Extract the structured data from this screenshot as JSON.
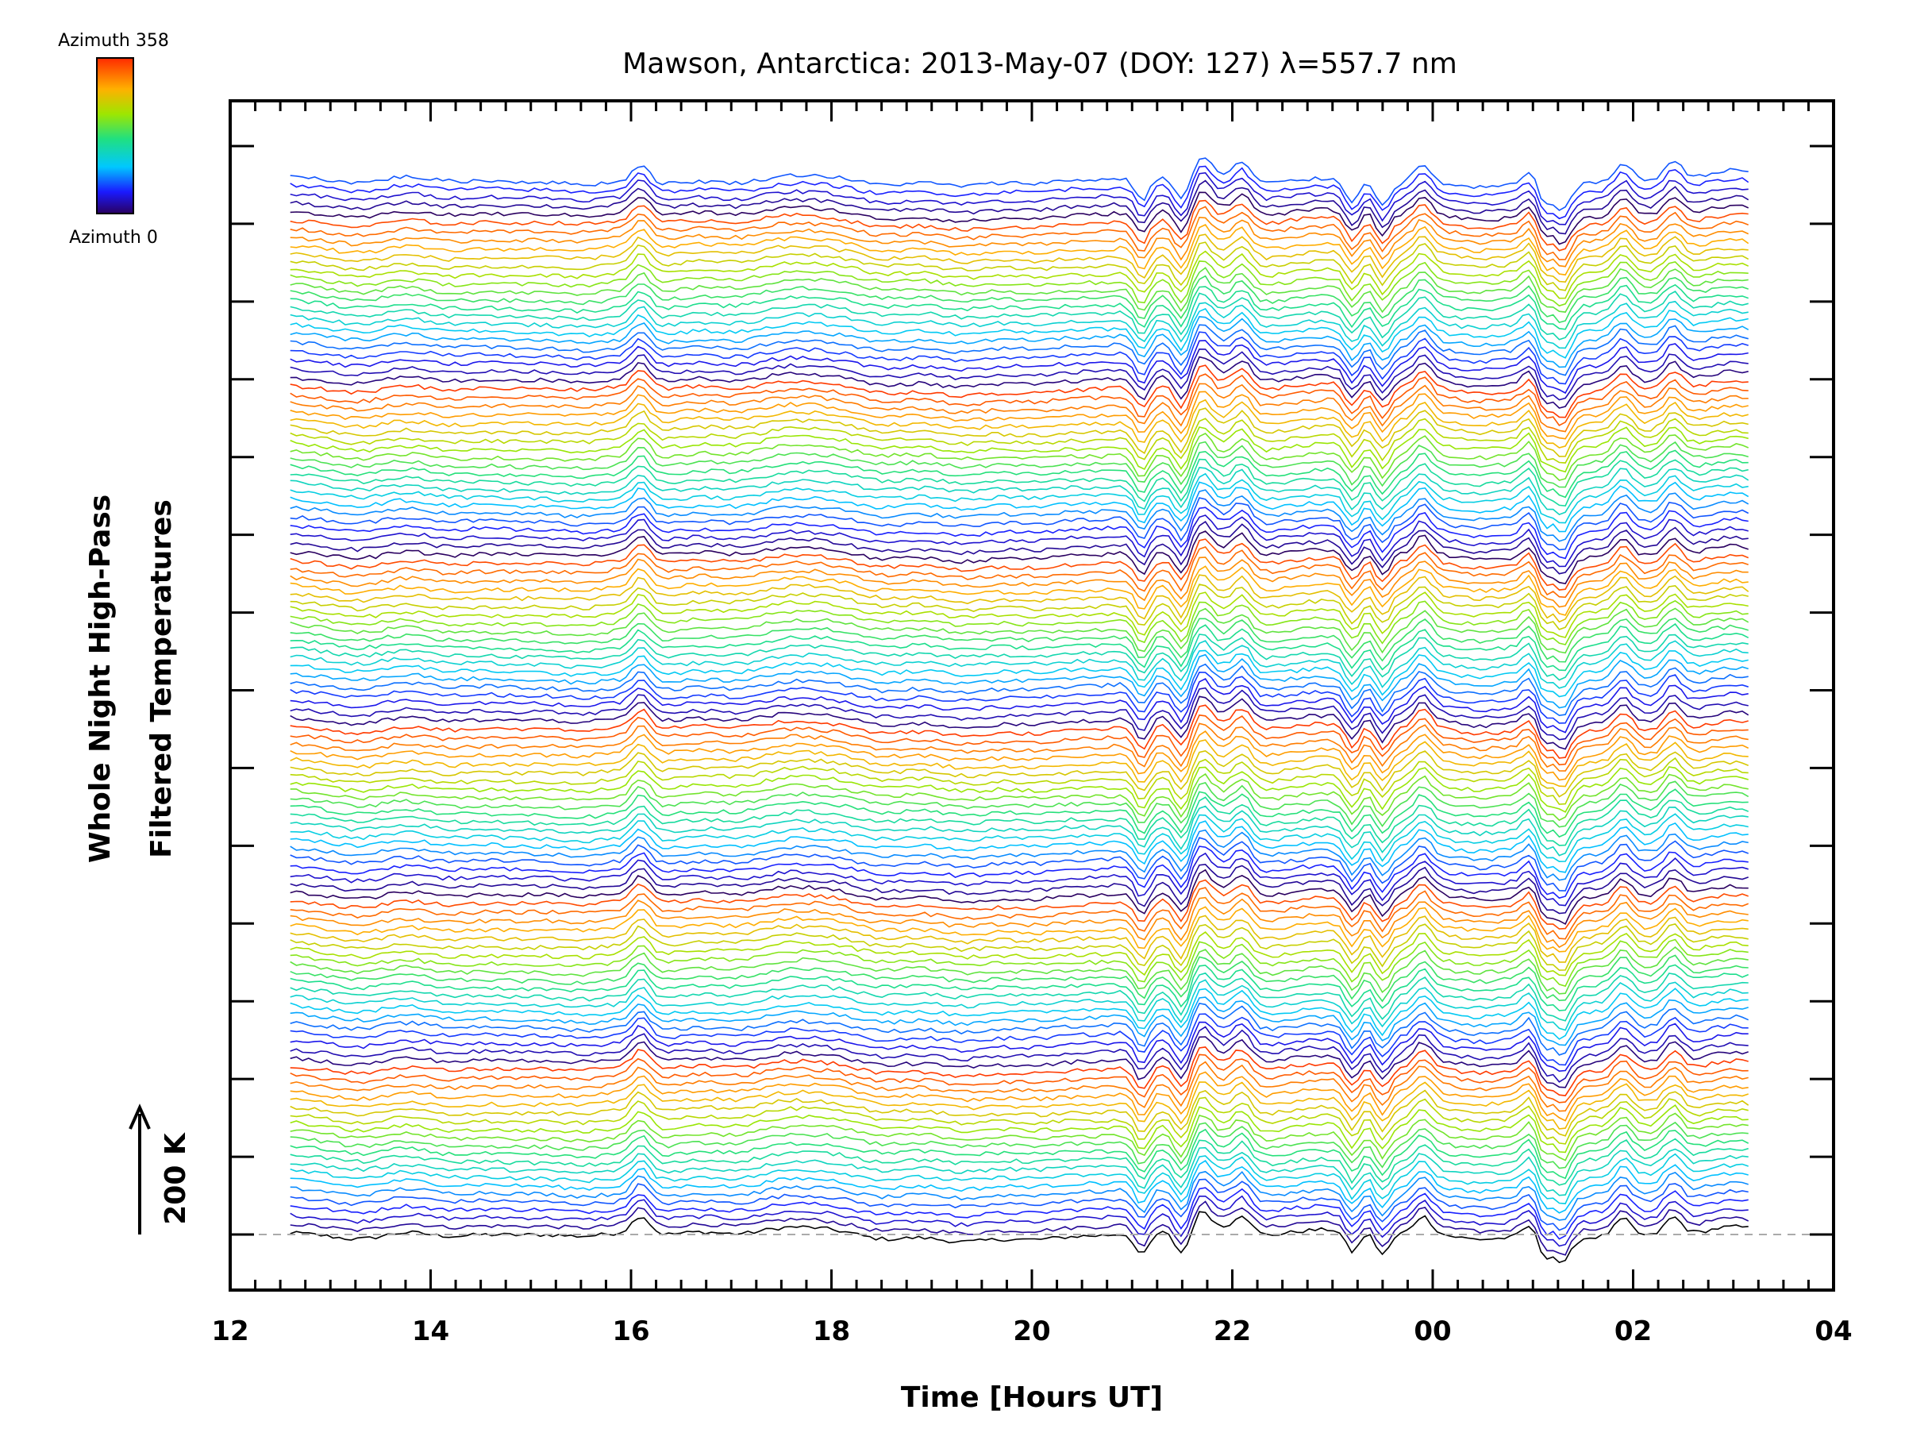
{
  "chart_data": {
    "type": "line",
    "title": "Mawson, Antarctica: 2013-May-07 (DOY: 127) λ=557.7 nm",
    "xlabel": "Time [Hours UT]",
    "ylabel_line1": "Whole Night High-Pass",
    "ylabel_line2": "Filtered Temperatures",
    "scale_label": "200 K",
    "x_ticks": [
      "12",
      "14",
      "16",
      "18",
      "20",
      "22",
      "00",
      "02",
      "04"
    ],
    "x_tick_values": [
      12,
      14,
      16,
      18,
      20,
      22,
      24,
      26,
      28
    ],
    "xlim": [
      12,
      28
    ],
    "data_start_hour": 12.6,
    "data_end_hour": 27.15,
    "n_traces": 128,
    "azimuth_min": 0,
    "azimuth_max": 358,
    "legend": {
      "top_label": "Azimuth 358",
      "bottom_label": "Azimuth 0",
      "colormap": "rainbow"
    },
    "baseline": "dashed",
    "features": {
      "spike_hours": [
        16.1,
        21.7,
        22.1,
        23.9,
        25.0,
        25.9,
        26.4
      ],
      "trough_hours": [
        21.1,
        21.5,
        23.2,
        23.5,
        25.1,
        25.3
      ]
    }
  }
}
